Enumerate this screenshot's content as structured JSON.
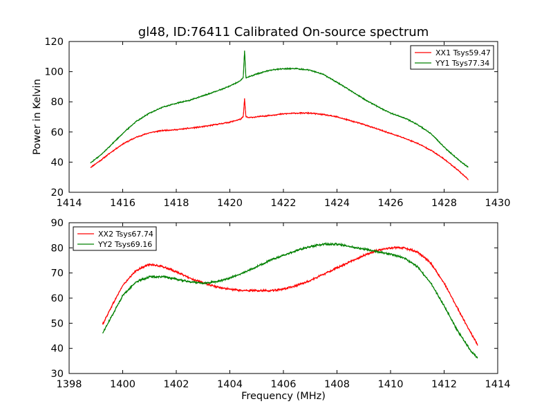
{
  "chart_data": [
    {
      "type": "line",
      "title": "gl48, ID:76411 Calibrated On-source spectrum",
      "xlabel": "",
      "ylabel": "Power in Kelvin",
      "xlim": [
        1414,
        1430
      ],
      "ylim": [
        20,
        120
      ],
      "xticks": [
        "1414",
        "1416",
        "1418",
        "1420",
        "1422",
        "1424",
        "1426",
        "1428",
        "1430"
      ],
      "yticks": [
        "20",
        "40",
        "60",
        "80",
        "100",
        "120"
      ],
      "legend_position": "top-right",
      "grid": false,
      "series": [
        {
          "name": "XX1 Tsys59.47",
          "color": "#ff0000",
          "x": [
            1414.8,
            1415.2,
            1415.6,
            1416.0,
            1416.5,
            1417.0,
            1417.5,
            1418.0,
            1418.5,
            1419.0,
            1419.5,
            1420.0,
            1420.4,
            1420.5,
            1420.55,
            1420.6,
            1420.7,
            1421.0,
            1421.5,
            1422.0,
            1422.5,
            1423.0,
            1423.5,
            1424.0,
            1424.5,
            1425.0,
            1425.5,
            1426.0,
            1426.5,
            1427.0,
            1427.5,
            1428.0,
            1428.5,
            1428.9
          ],
          "y": [
            36.5,
            41.5,
            47,
            52,
            56.5,
            59.5,
            61,
            61.5,
            62.5,
            63.5,
            65,
            66.5,
            68.5,
            70,
            82,
            70,
            69.5,
            70,
            71,
            72,
            72.5,
            72.5,
            71.5,
            70,
            67.5,
            65,
            62,
            59,
            56,
            52.5,
            48,
            42,
            35,
            28.5
          ]
        },
        {
          "name": "YY1 Tsys77.34",
          "color": "#008000",
          "x": [
            1414.8,
            1415.2,
            1415.6,
            1416.0,
            1416.5,
            1417.0,
            1417.5,
            1418.0,
            1418.5,
            1419.0,
            1419.5,
            1420.0,
            1420.4,
            1420.5,
            1420.55,
            1420.6,
            1420.7,
            1421.0,
            1421.5,
            1422.0,
            1422.5,
            1423.0,
            1423.5,
            1424.0,
            1424.5,
            1425.0,
            1425.5,
            1426.0,
            1426.5,
            1427.0,
            1427.5,
            1428.0,
            1428.5,
            1428.9
          ],
          "y": [
            39.5,
            45,
            52,
            59,
            67,
            72.5,
            76.5,
            79,
            81,
            84,
            87,
            90.5,
            94,
            96,
            114,
            96,
            96.5,
            98.5,
            101,
            102,
            102,
            101,
            98,
            93,
            87.5,
            82,
            77,
            72.5,
            69.5,
            65,
            59,
            50,
            42,
            36.5
          ]
        }
      ]
    },
    {
      "type": "line",
      "title": "",
      "xlabel": "Frequency (MHz)",
      "ylabel": "",
      "xlim": [
        1398,
        1414
      ],
      "ylim": [
        30,
        90
      ],
      "xticks": [
        "1398",
        "1400",
        "1402",
        "1404",
        "1406",
        "1408",
        "1410",
        "1412",
        "1414"
      ],
      "yticks": [
        "30",
        "40",
        "50",
        "60",
        "70",
        "80",
        "90"
      ],
      "legend_position": "top-left",
      "grid": false,
      "series": [
        {
          "name": "XX2 Tsys67.74",
          "color": "#ff0000",
          "x": [
            1399.25,
            1399.6,
            1400.0,
            1400.5,
            1401.0,
            1401.5,
            1402.0,
            1402.5,
            1403.0,
            1403.5,
            1404.0,
            1404.5,
            1405.0,
            1405.5,
            1406.0,
            1406.5,
            1407.0,
            1407.5,
            1408.0,
            1408.5,
            1409.0,
            1409.5,
            1410.0,
            1410.5,
            1411.0,
            1411.5,
            1412.0,
            1412.5,
            1413.0,
            1413.25
          ],
          "y": [
            49.5,
            57,
            65,
            71,
            73.5,
            72.5,
            70.5,
            68,
            66,
            64.5,
            63.5,
            63,
            63,
            63,
            63.5,
            65,
            67,
            69.5,
            72,
            74.5,
            77,
            79,
            80,
            80,
            78.5,
            74,
            66,
            56,
            46,
            41.5
          ]
        },
        {
          "name": "YY2 Tsys69.16",
          "color": "#008000",
          "x": [
            1399.25,
            1399.6,
            1400.0,
            1400.5,
            1401.0,
            1401.5,
            1402.0,
            1402.5,
            1403.0,
            1403.5,
            1404.0,
            1404.5,
            1405.0,
            1405.5,
            1406.0,
            1406.5,
            1407.0,
            1407.5,
            1408.0,
            1408.5,
            1409.0,
            1409.5,
            1410.0,
            1410.5,
            1411.0,
            1411.5,
            1412.0,
            1412.5,
            1413.0,
            1413.25
          ],
          "y": [
            46,
            53,
            61,
            66.5,
            68.5,
            68.5,
            67.5,
            66.5,
            66,
            66.5,
            68,
            70,
            72.5,
            75,
            77,
            79,
            80.5,
            81.5,
            81.5,
            80.5,
            79.5,
            78.5,
            77.5,
            76,
            72.5,
            66,
            57,
            47,
            39,
            36
          ]
        }
      ]
    }
  ]
}
